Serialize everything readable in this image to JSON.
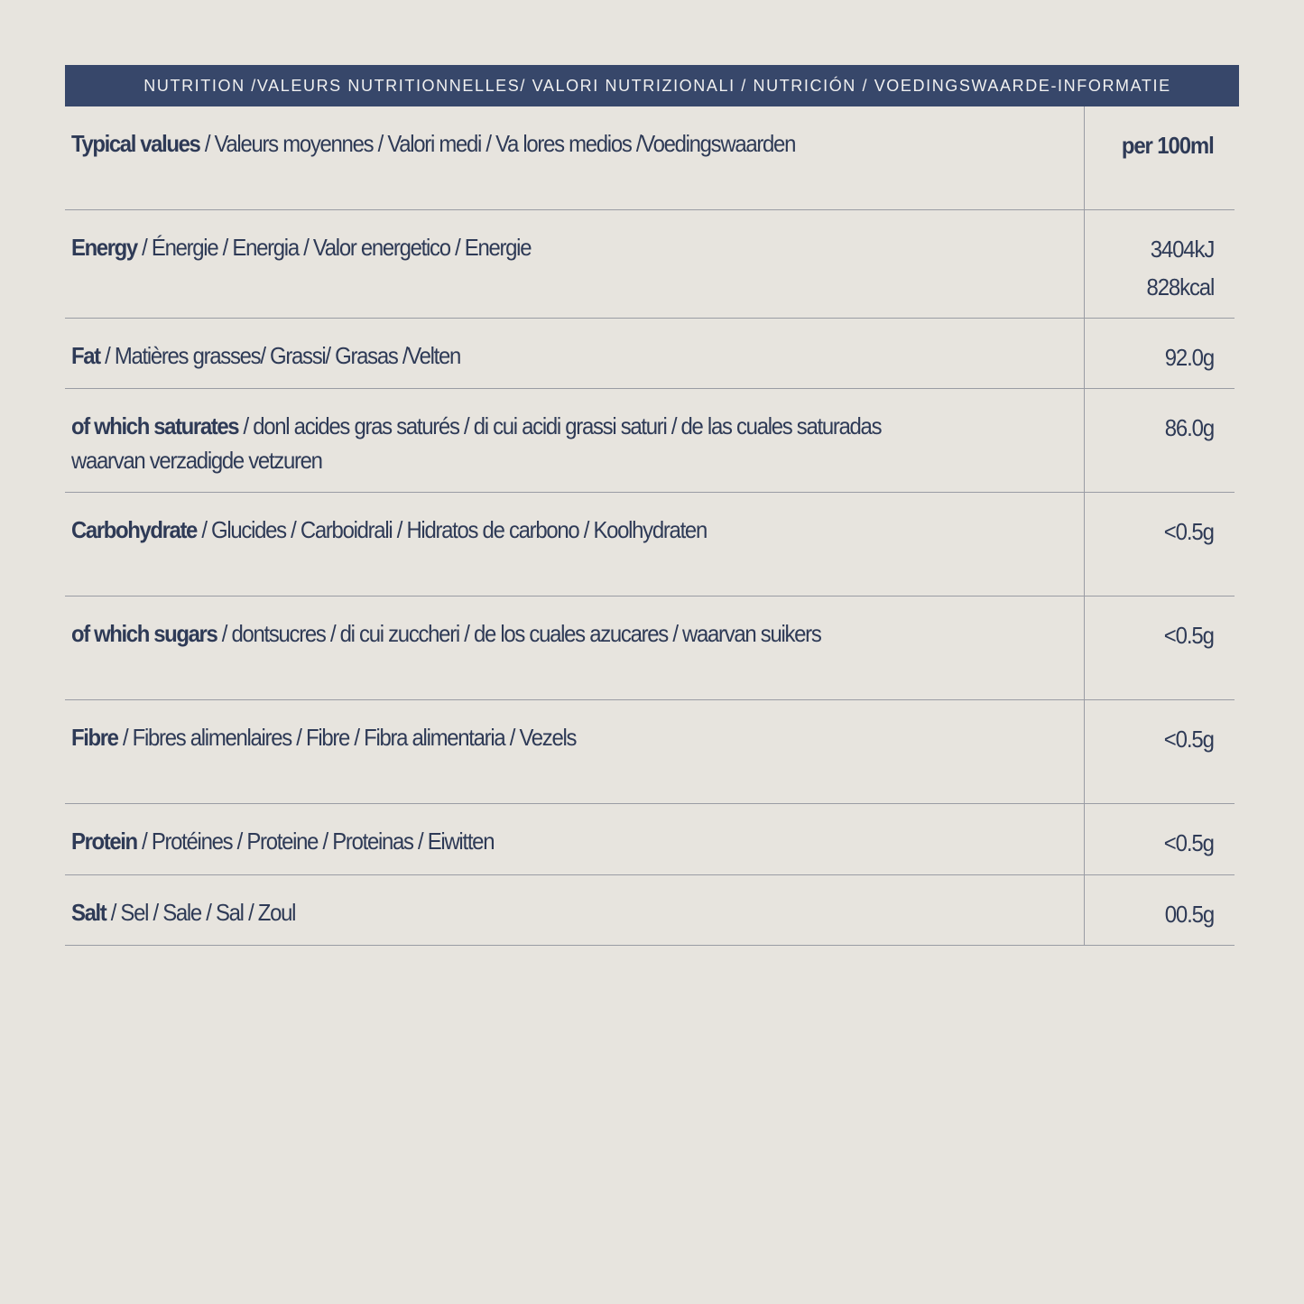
{
  "header": "NUTRITION /VALEURS NUTRITIONNELLES/ VALORI NUTRIZIONALI / NUTRICIÓN / VOEDINGSWAARDE-INFORMATIE",
  "rows": [
    {
      "bold": "Typical values",
      "rest": " / Valeurs moyennes / Valori medi / Va lores medios /Voedingswaarden",
      "value": [
        "per 100ml"
      ]
    },
    {
      "bold": "Energy",
      "rest": " / Énergie / Energia / Valor energetico / Energie",
      "value": [
        "3404kJ",
        "828kcal"
      ]
    },
    {
      "bold": "Fat",
      "rest": " / Matières grasses/ Grassi/ Grasas /Velten",
      "value": [
        "92.0g"
      ]
    },
    {
      "bold": "of which saturates",
      "rest": " / donl acides gras saturés / di cui acidi grassi saturi / de las cuales saturadas\nwaarvan verzadigde vetzuren",
      "value": [
        "86.0g"
      ]
    },
    {
      "bold": "Carbohydrate",
      "rest": " / Glucides / Carboidrali / Hidratos de carbono / Koolhydraten",
      "value": [
        "<0.5g"
      ]
    },
    {
      "bold": "of which sugars",
      "rest": " / dontsucres / di cui zuccheri / de los cuales azucares / waarvan suikers",
      "value": [
        "<0.5g"
      ]
    },
    {
      "bold": "Fibre",
      "rest": " / Fibres alimenlaires / Fibre / Fibra alimentaria / Vezels",
      "value": [
        "<0.5g"
      ]
    },
    {
      "bold": "Protein",
      "rest": " / Protéines / Proteine / Proteinas / Eiwitten",
      "value": [
        "<0.5g"
      ]
    },
    {
      "bold": "Salt",
      "rest": " / Sel / Sale / Sal / Zoul",
      "value": [
        "00.5g"
      ]
    }
  ],
  "colors": {
    "header_bg": "#37476a",
    "text": "#2e3a56",
    "background": "#e7e4de"
  }
}
